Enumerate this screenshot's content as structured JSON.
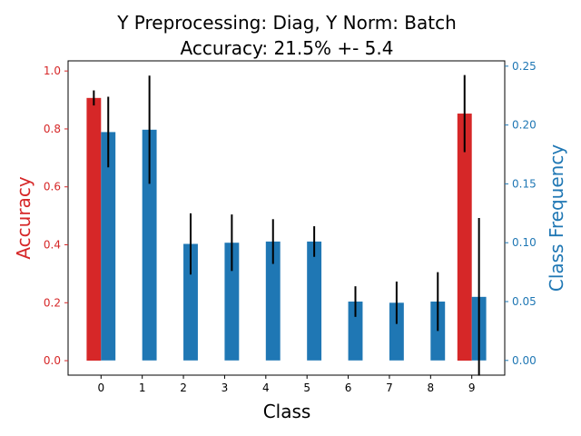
{
  "chart_data": {
    "type": "bar",
    "title_lines": [
      "Y Preprocessing: Diag, Y Norm: Batch",
      "Accuracy: 21.5% +- 5.4"
    ],
    "xlabel": "Class",
    "ylabel_left": "Accuracy",
    "ylabel_right": "Class Frequency",
    "colors": {
      "accuracy": "#d62728",
      "frequency": "#1f77b4",
      "error": "#000000"
    },
    "categories": [
      "0",
      "1",
      "2",
      "3",
      "4",
      "5",
      "6",
      "7",
      "8",
      "9"
    ],
    "yticks_left": [
      "0.0",
      "0.2",
      "0.4",
      "0.6",
      "0.8",
      "1.0"
    ],
    "yticks_right": [
      "0.00",
      "0.05",
      "0.10",
      "0.15",
      "0.20",
      "0.25"
    ],
    "ylim_left": [
      -0.05,
      1.035
    ],
    "ylim_right": [
      -0.0125,
      0.2545
    ],
    "series": [
      {
        "name": "Accuracy",
        "axis": "left",
        "values": [
          0.907,
          0,
          0,
          0,
          0,
          0,
          0,
          0,
          0,
          0.853
        ],
        "err": [
          0.026,
          0,
          0,
          0,
          0,
          0,
          0,
          0,
          0,
          0.133
        ]
      },
      {
        "name": "Class Frequency",
        "axis": "right",
        "values": [
          0.194,
          0.196,
          0.099,
          0.1,
          0.101,
          0.101,
          0.05,
          0.049,
          0.05,
          0.054
        ],
        "err": [
          0.03,
          0.046,
          0.026,
          0.024,
          0.019,
          0.013,
          0.013,
          0.018,
          0.025,
          0.067
        ]
      }
    ]
  }
}
